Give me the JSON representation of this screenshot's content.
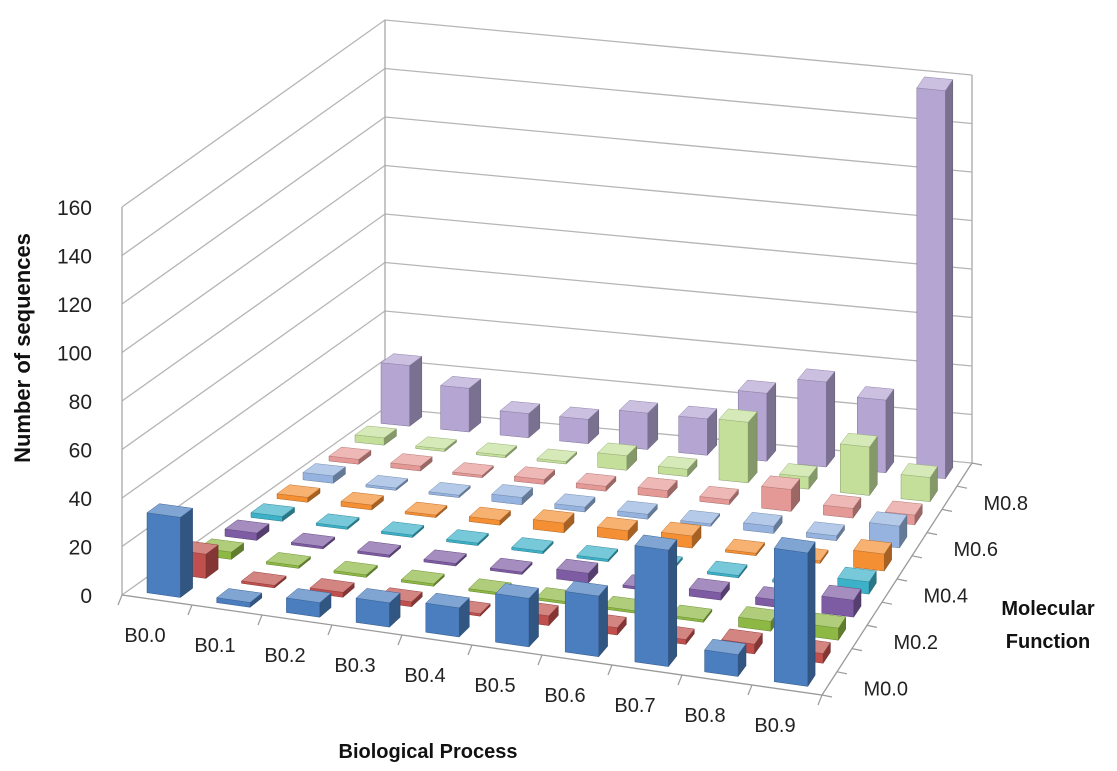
{
  "chart_data": {
    "type": "bar3d",
    "title": "",
    "ylabel": "Number of sequences",
    "xlabel": "Biological Process",
    "zlabel_lines": [
      "Molecular",
      "Function"
    ],
    "ylim": [
      0,
      160
    ],
    "y_ticks": [
      "0",
      "20",
      "40",
      "60",
      "80",
      "100",
      "120",
      "140",
      "160"
    ],
    "x_categories": [
      "B0.0",
      "B0.1",
      "B0.2",
      "B0.3",
      "B0.4",
      "B0.5",
      "B0.6",
      "B0.7",
      "B0.8",
      "B0.9"
    ],
    "z_categories": [
      "M0.0",
      "M0.1",
      "M0.2",
      "M0.3",
      "M0.4",
      "M0.5",
      "M0.6",
      "M0.7",
      "M0.8",
      "M0.9"
    ],
    "z_tick_labels": [
      "M0.0",
      "",
      "M0.2",
      "",
      "M0.4",
      "",
      "M0.6",
      "",
      "M0.8",
      ""
    ],
    "series_colors": [
      "#4a7ebf",
      "#c0504d",
      "#8db843",
      "#7e5ca3",
      "#3cb1c7",
      "#f48f34",
      "#95b3de",
      "#e59996",
      "#c4df9a",
      "#b4a5d3"
    ],
    "series": [
      {
        "category": "M0.0",
        "values": [
          33,
          2,
          6,
          10,
          12,
          20,
          25,
          48,
          9,
          55
        ]
      },
      {
        "category": "M0.1",
        "values": [
          10,
          1,
          2,
          2,
          1,
          4,
          3,
          2,
          4,
          4
        ]
      },
      {
        "category": "M0.2",
        "values": [
          3,
          1,
          1,
          1,
          1,
          1,
          1,
          1,
          4,
          5
        ]
      },
      {
        "category": "M0.3",
        "values": [
          3,
          1,
          1,
          1,
          1,
          4,
          1,
          3,
          3,
          7
        ]
      },
      {
        "category": "M0.4",
        "values": [
          2,
          1,
          1,
          1,
          1,
          1,
          1,
          1,
          1,
          5
        ]
      },
      {
        "category": "M0.5",
        "values": [
          2,
          2,
          1,
          2,
          4,
          4,
          5,
          1,
          1,
          7
        ]
      },
      {
        "category": "M0.6",
        "values": [
          3,
          1,
          1,
          3,
          2,
          2,
          1,
          3,
          2,
          9
        ]
      },
      {
        "category": "M0.7",
        "values": [
          2,
          2,
          1,
          2,
          2,
          3,
          2,
          9,
          4,
          4
        ]
      },
      {
        "category": "M0.8",
        "values": [
          3,
          1,
          1,
          1,
          6,
          3,
          25,
          5,
          20,
          10
        ]
      },
      {
        "category": "M0.9",
        "values": [
          25,
          18,
          10,
          10,
          15,
          15,
          28,
          35,
          30,
          160
        ]
      }
    ]
  }
}
